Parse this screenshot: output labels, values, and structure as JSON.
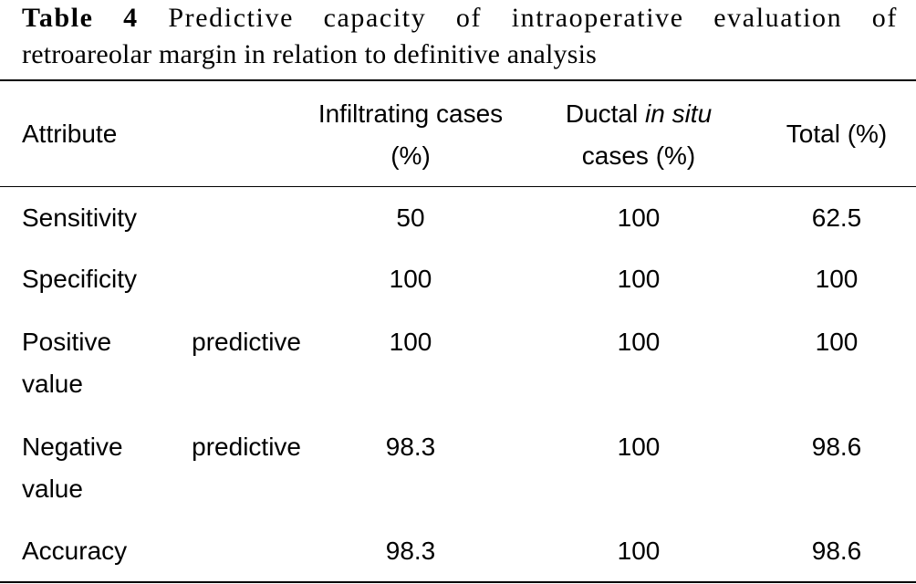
{
  "caption": {
    "label": "Table 4",
    "line1_text": "Predictive capacity of intraoperative evaluation of",
    "line2_text": "retroareolar margin in relation to definitive analysis"
  },
  "table": {
    "headers": {
      "attribute": "Attribute",
      "infiltrating_line1": "Infiltrating cases",
      "infiltrating_line2": "(%)",
      "ductal_prefix": "Ductal ",
      "ductal_italic": "in situ",
      "ductal_line2": "cases (%)",
      "total": "Total (%)"
    },
    "rows": [
      {
        "attribute_line1": "Sensitivity",
        "attribute_line2": "",
        "infiltrating": "50",
        "ductal": "100",
        "total": "62.5"
      },
      {
        "attribute_line1": "Specificity",
        "attribute_line2": "",
        "infiltrating": "100",
        "ductal": "100",
        "total": "100"
      },
      {
        "attribute_line1": "Positive predictive",
        "attribute_line2": "value",
        "infiltrating": "100",
        "ductal": "100",
        "total": "100"
      },
      {
        "attribute_line1": "Negative predictive",
        "attribute_line2": "value",
        "infiltrating": "98.3",
        "ductal": "100",
        "total": "98.6"
      },
      {
        "attribute_line1": "Accuracy",
        "attribute_line2": "",
        "infiltrating": "98.3",
        "ductal": "100",
        "total": "98.6"
      }
    ]
  }
}
